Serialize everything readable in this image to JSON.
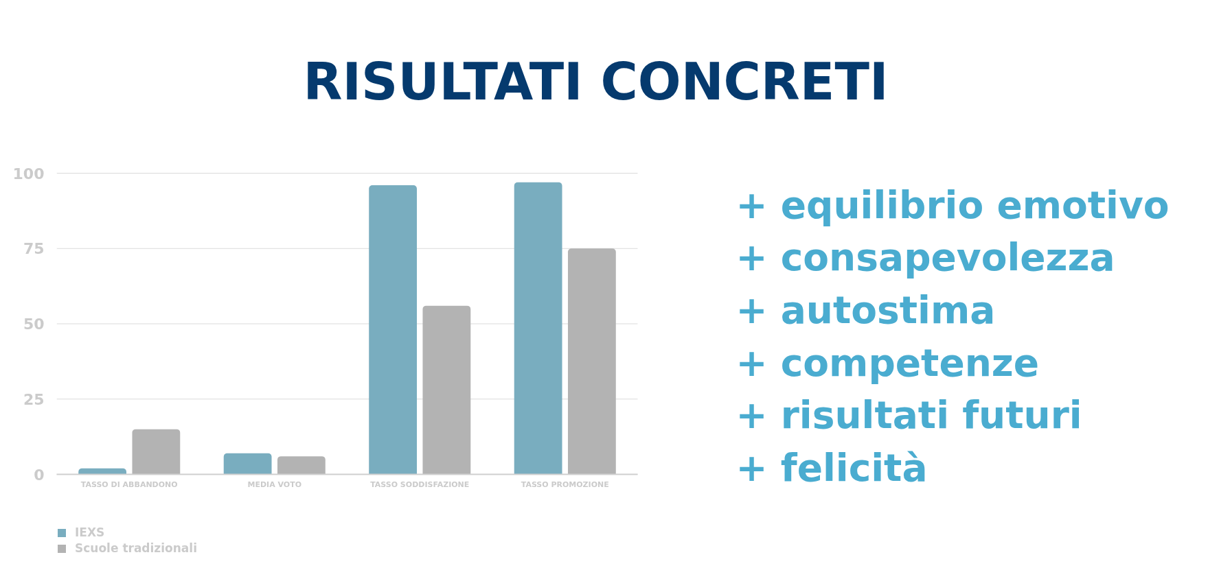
{
  "chart_data": {
    "type": "bar",
    "title": "RISULTATI CONCRETI",
    "categories": [
      "TASSO DI ABBANDONO",
      "MEDIA VOTO",
      "TASSO SODDISFAZIONE",
      "TASSO PROMOZIONE"
    ],
    "series": [
      {
        "name": "IEXS",
        "color": "#79adbf",
        "values": [
          2,
          7,
          96,
          97
        ]
      },
      {
        "name": "Scuole tradizionali",
        "color": "#b3b3b3",
        "values": [
          15,
          6,
          56,
          75
        ]
      }
    ],
    "ylim": [
      0,
      100
    ],
    "yticks": [
      0,
      25,
      50,
      75,
      100
    ],
    "grid": "y",
    "legend": "bottom left",
    "annotations": [
      "+ equilibrio emotivo",
      "+ consapevolezza",
      "+ autostima",
      "+ competenze",
      "+ risultati futuri",
      "+ felicità"
    ]
  }
}
